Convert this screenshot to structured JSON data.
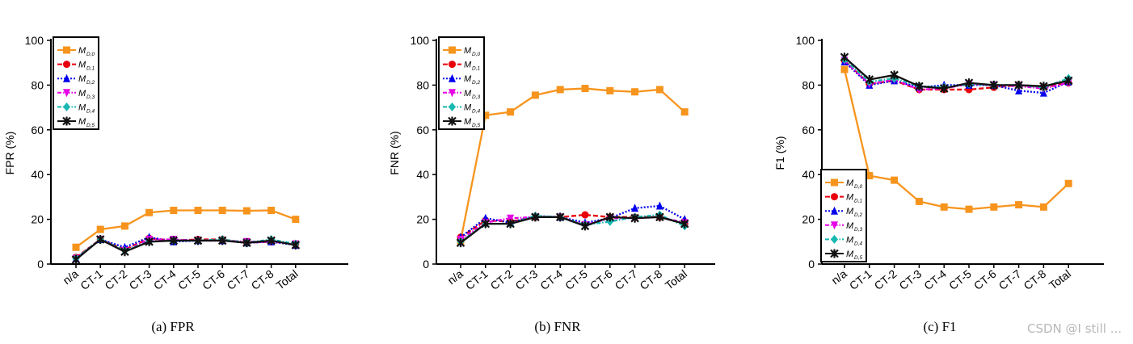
{
  "categories": [
    "n/a",
    "CT-1",
    "CT-2",
    "CT-3",
    "CT-4",
    "CT-5",
    "CT-6",
    "CT-7",
    "CT-8",
    "Total"
  ],
  "legend_labels": [
    "M",
    "M",
    "M",
    "M",
    "M",
    "M"
  ],
  "legend_subscripts": [
    "D,0",
    "D,1",
    "D,2",
    "D,3",
    "D,4",
    "D,5"
  ],
  "watermark": "CSDN @I still ...",
  "chart_data": [
    {
      "type": "line",
      "caption": "(a)  FPR",
      "ylabel": "FPR (%)",
      "ylim": [
        0,
        100
      ],
      "yticks": [
        0,
        20,
        40,
        60,
        80,
        100
      ],
      "legend_position": "top-left",
      "series": [
        {
          "values": [
            7.5,
            15.5,
            17,
            23,
            24,
            24,
            24,
            23.8,
            24,
            20
          ],
          "color": "#f7941d",
          "dash": "solid",
          "marker": "square"
        },
        {
          "values": [
            3,
            11,
            6.5,
            11.5,
            10.5,
            11,
            11,
            9.5,
            10,
            9
          ],
          "color": "#e8000b",
          "dash": "dashed",
          "marker": "circle"
        },
        {
          "values": [
            2.5,
            11,
            7.5,
            12,
            10,
            10.5,
            10.5,
            9.5,
            10,
            8.5
          ],
          "color": "#0000ee",
          "dash": "dotted",
          "marker": "triangle"
        },
        {
          "values": [
            2.5,
            11,
            6,
            11,
            11,
            10.5,
            10.5,
            10,
            10,
            9
          ],
          "color": "#e600e6",
          "dash": "dashdot",
          "marker": "triangle-down"
        },
        {
          "values": [
            2.5,
            11,
            6,
            10,
            10.5,
            10.5,
            11,
            9.5,
            11,
            9
          ],
          "color": "#16b8b0",
          "dash": "dashdot",
          "marker": "diamond"
        },
        {
          "values": [
            2,
            11,
            5.5,
            10,
            10.5,
            10.5,
            10.5,
            9.5,
            10.5,
            8.5
          ],
          "color": "#111111",
          "dash": "solid",
          "marker": "x"
        }
      ]
    },
    {
      "type": "line",
      "caption": "(b)  FNR",
      "ylabel": "FNR (%)",
      "ylim": [
        0,
        100
      ],
      "yticks": [
        0,
        20,
        40,
        60,
        80,
        100
      ],
      "legend_position": "top-left",
      "series": [
        {
          "values": [
            10.5,
            66.5,
            68,
            75.5,
            78,
            78.5,
            77.5,
            77,
            78,
            68
          ],
          "color": "#f7941d",
          "dash": "solid",
          "marker": "square"
        },
        {
          "values": [
            12,
            19.5,
            19,
            21,
            21,
            22,
            21,
            21,
            21,
            18
          ],
          "color": "#e8000b",
          "dash": "dashed",
          "marker": "circle"
        },
        {
          "values": [
            12,
            20.5,
            18.5,
            21.5,
            21,
            18.5,
            20.5,
            25,
            26,
            20
          ],
          "color": "#0000ee",
          "dash": "dotted",
          "marker": "triangle"
        },
        {
          "values": [
            11,
            18.5,
            20.5,
            21,
            21,
            17.5,
            20.5,
            20.5,
            21,
            18.5
          ],
          "color": "#e600e6",
          "dash": "dashdot",
          "marker": "triangle-down"
        },
        {
          "values": [
            10,
            18,
            18,
            21.5,
            21,
            17.5,
            19,
            21,
            22,
            17
          ],
          "color": "#16b8b0",
          "dash": "dashdot",
          "marker": "diamond"
        },
        {
          "values": [
            9.5,
            18,
            18,
            21,
            21,
            17,
            21,
            20.5,
            21,
            18
          ],
          "color": "#111111",
          "dash": "solid",
          "marker": "x"
        }
      ]
    },
    {
      "type": "line",
      "caption": "(c)  F1",
      "ylabel": "F1 (%)",
      "ylim": [
        0,
        100
      ],
      "yticks": [
        0,
        20,
        40,
        60,
        80,
        100
      ],
      "legend_position": "bottom-left",
      "series": [
        {
          "values": [
            87,
            39.5,
            37.5,
            28,
            25.5,
            24.5,
            25.5,
            26.5,
            25.5,
            36
          ],
          "color": "#f7941d",
          "dash": "solid",
          "marker": "square"
        },
        {
          "values": [
            91,
            80.5,
            82,
            78,
            78,
            78,
            79,
            80,
            79,
            81
          ],
          "color": "#e8000b",
          "dash": "dashed",
          "marker": "circle"
        },
        {
          "values": [
            90.5,
            80,
            82,
            79,
            80,
            80,
            80,
            77.5,
            76.5,
            81.5
          ],
          "color": "#0000ee",
          "dash": "dotted",
          "marker": "triangle"
        },
        {
          "values": [
            91,
            80.5,
            82.5,
            78,
            78.5,
            80.5,
            80,
            79.5,
            78.5,
            81
          ],
          "color": "#e600e6",
          "dash": "dashdot",
          "marker": "triangle-down"
        },
        {
          "values": [
            91.5,
            81.5,
            83,
            79.5,
            79,
            80.5,
            80,
            80,
            79,
            83
          ],
          "color": "#16b8b0",
          "dash": "dashdot",
          "marker": "diamond"
        },
        {
          "values": [
            92.5,
            82.5,
            84.5,
            79.5,
            78.5,
            81,
            80,
            80,
            79.5,
            82
          ],
          "color": "#111111",
          "dash": "solid",
          "marker": "x"
        }
      ]
    }
  ]
}
